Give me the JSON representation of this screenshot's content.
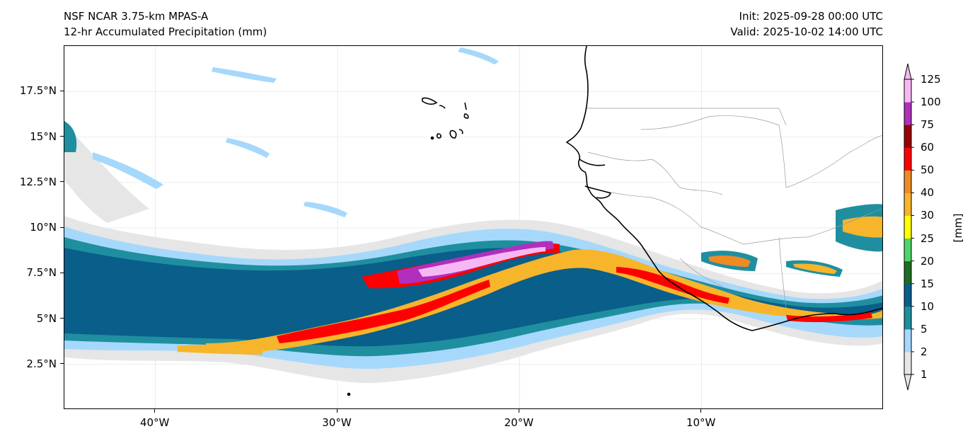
{
  "title": {
    "model": "NSF NCAR 3.75-km MPAS-A",
    "field": "12-hr Accumulated Precipitation (mm)",
    "init": "Init: 2025-09-28 00:00 UTC",
    "valid": "Valid: 2025-10-02 14:00 UTC"
  },
  "axes": {
    "lon_range": [
      -45,
      0
    ],
    "lat_range": [
      0,
      20
    ],
    "lat_ticks": [
      {
        "value": 17.5,
        "label": "17.5°N"
      },
      {
        "value": 15,
        "label": "15°N"
      },
      {
        "value": 12.5,
        "label": "12.5°N"
      },
      {
        "value": 10,
        "label": "10°N"
      },
      {
        "value": 7.5,
        "label": "7.5°N"
      },
      {
        "value": 5,
        "label": "5°N"
      },
      {
        "value": 2.5,
        "label": "2.5°N"
      }
    ],
    "lon_ticks": [
      {
        "value": -40,
        "label": "40°W"
      },
      {
        "value": -30,
        "label": "30°W"
      },
      {
        "value": -20,
        "label": "20°W"
      },
      {
        "value": -10,
        "label": "10°W"
      }
    ]
  },
  "colorbar": {
    "units": "[mm]",
    "levels": [
      "1",
      "2",
      "5",
      "10",
      "15",
      "20",
      "25",
      "30",
      "40",
      "50",
      "60",
      "75",
      "100",
      "125"
    ],
    "colors": [
      "#e6e6e6",
      "#a6d8fb",
      "#1f8fa0",
      "#0a5e8a",
      "#1e6b22",
      "#4fd36a",
      "#ffff00",
      "#f7b52c",
      "#f08a24",
      "#ff0000",
      "#990000",
      "#b12fbd",
      "#f6b8f2"
    ]
  },
  "colors": {
    "coast": "#000000",
    "border": "#9a9a9a",
    "grid": "#dddddd"
  }
}
